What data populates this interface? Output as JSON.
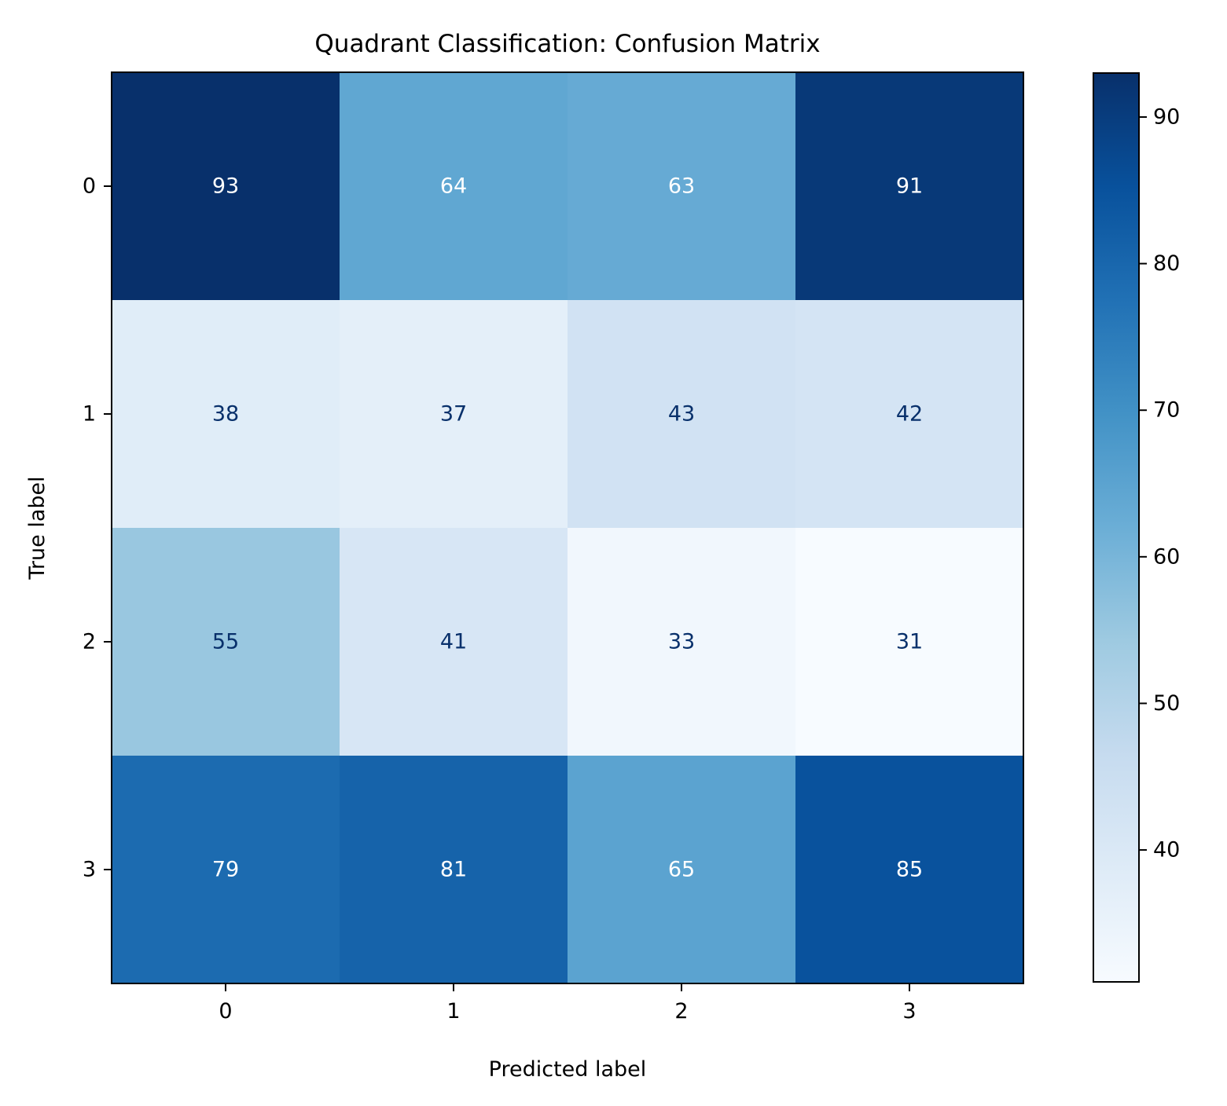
{
  "chart_data": {
    "type": "heatmap",
    "title": "Quadrant Classification: Confusion Matrix",
    "xlabel": "Predicted label",
    "ylabel": "True label",
    "x_categories": [
      "0",
      "1",
      "2",
      "3"
    ],
    "y_categories": [
      "0",
      "1",
      "2",
      "3"
    ],
    "matrix": [
      [
        93,
        64,
        63,
        91
      ],
      [
        38,
        37,
        43,
        42
      ],
      [
        55,
        41,
        33,
        31
      ],
      [
        79,
        81,
        65,
        85
      ]
    ],
    "colormap": "Blues",
    "colorbar": {
      "range": [
        31,
        93
      ],
      "ticks": [
        40,
        50,
        60,
        70,
        80,
        90
      ],
      "tick_labels": [
        "40",
        "50",
        "60",
        "70",
        "80",
        "90"
      ]
    },
    "text_colors": {
      "dark_bg": "#ffffff",
      "light_bg": "#08306b"
    },
    "grid": false
  }
}
